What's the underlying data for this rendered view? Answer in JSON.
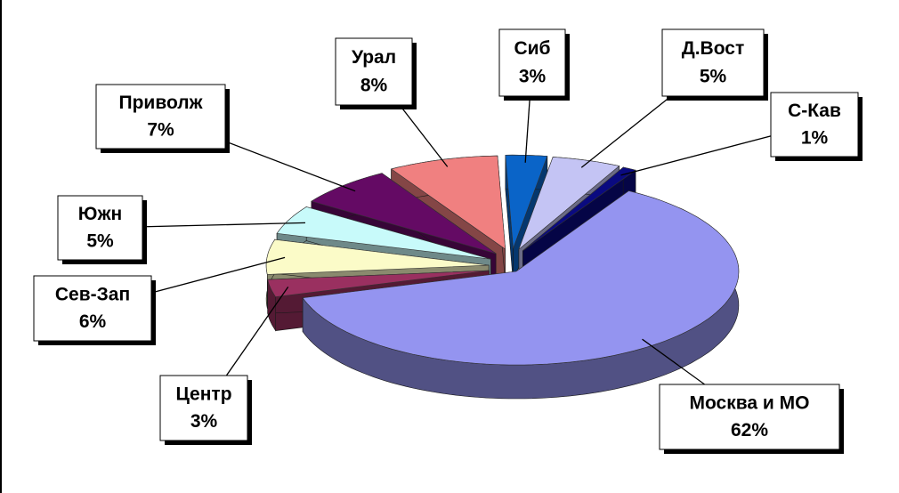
{
  "chart_data": {
    "type": "pie3d",
    "categories": [
      "Сиб",
      "Д.Вост",
      "С-Кав",
      "Москва и МО",
      "Центр",
      "Сев-Зап",
      "Южн",
      "Приволж",
      "Урал"
    ],
    "values": [
      3,
      5,
      1,
      62,
      3,
      6,
      5,
      7,
      8
    ],
    "value_labels": [
      "3%",
      "5%",
      "1%",
      "62%",
      "3%",
      "6%",
      "5%",
      "7%",
      "8%"
    ],
    "colors": [
      "#0a64c8",
      "#c4c4f4",
      "#0a0a80",
      "#9494f0",
      "#9a3060",
      "#fbfbc8",
      "#c8fafa",
      "#640a64",
      "#f08080"
    ]
  }
}
